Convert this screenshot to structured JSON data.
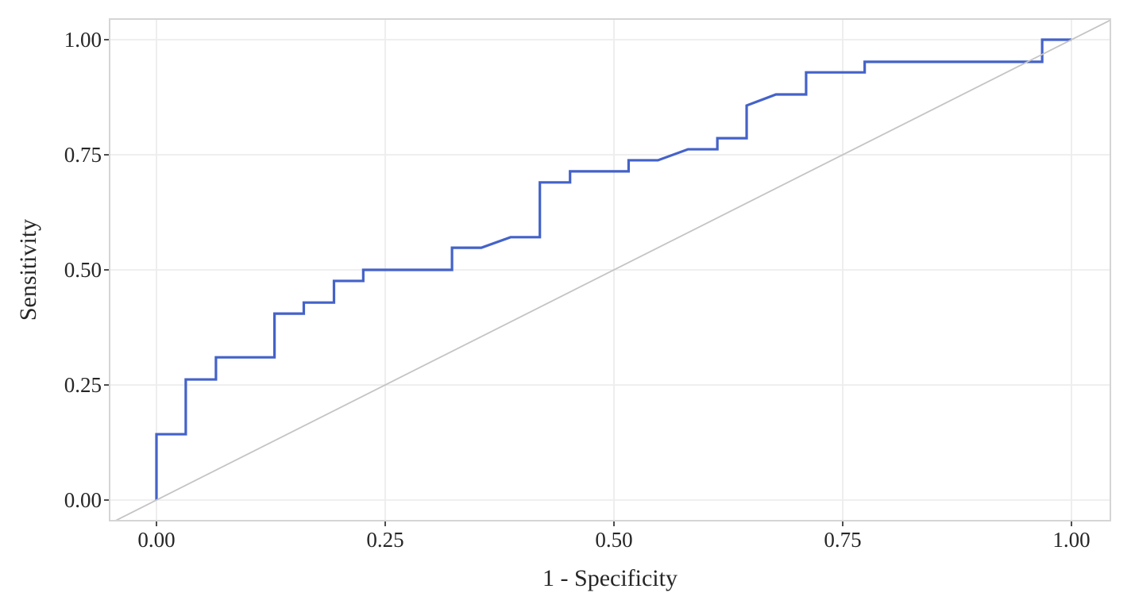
{
  "figure": {
    "background_color": "#ffffff",
    "text_color": "#262626"
  },
  "chart_data": {
    "type": "line",
    "subtype": "roc_step_curve",
    "title": "",
    "xlabel": "1 - Specificity",
    "ylabel": "Sensitivity",
    "xlim": [
      -0.051,
      1.043
    ],
    "ylim": [
      -0.045,
      1.041
    ],
    "x_tick_labels": [
      "0.00",
      "0.25",
      "0.50",
      "0.75",
      "1.00"
    ],
    "x_tick_values": [
      0,
      0.25,
      0.5,
      0.75,
      1
    ],
    "y_tick_labels": [
      "0.00",
      "0.25",
      "0.50",
      "0.75",
      "1.00"
    ],
    "y_tick_values": [
      0,
      0.25,
      0.5,
      0.75,
      1
    ],
    "grid": "major_only",
    "legend_position": "none",
    "colors": {
      "panel_background": "#ffffff",
      "panel_border": "#d5d5d5",
      "gridline": "#ededed",
      "tick_mark": "#4d4d4d",
      "axis_text": "#262626",
      "roc_curve": "#4462c8",
      "reference_line": "#c4c4c4"
    },
    "series": [
      {
        "name": "ROC curve",
        "draw": "step_polyline",
        "color": "#4462c8",
        "stroke_width": 3.2,
        "points": [
          [
            0.0,
            0.0
          ],
          [
            0.0,
            0.143
          ],
          [
            0.032,
            0.143
          ],
          [
            0.032,
            0.262
          ],
          [
            0.065,
            0.262
          ],
          [
            0.065,
            0.31
          ],
          [
            0.129,
            0.31
          ],
          [
            0.129,
            0.405
          ],
          [
            0.161,
            0.405
          ],
          [
            0.161,
            0.429
          ],
          [
            0.194,
            0.429
          ],
          [
            0.194,
            0.476
          ],
          [
            0.226,
            0.476
          ],
          [
            0.226,
            0.5
          ],
          [
            0.323,
            0.5
          ],
          [
            0.323,
            0.548
          ],
          [
            0.355,
            0.548
          ],
          [
            0.387,
            0.571
          ],
          [
            0.419,
            0.571
          ],
          [
            0.419,
            0.69
          ],
          [
            0.452,
            0.69
          ],
          [
            0.452,
            0.714
          ],
          [
            0.516,
            0.714
          ],
          [
            0.516,
            0.738
          ],
          [
            0.548,
            0.738
          ],
          [
            0.581,
            0.762
          ],
          [
            0.613,
            0.762
          ],
          [
            0.613,
            0.786
          ],
          [
            0.645,
            0.786
          ],
          [
            0.645,
            0.857
          ],
          [
            0.677,
            0.881
          ],
          [
            0.71,
            0.881
          ],
          [
            0.71,
            0.929
          ],
          [
            0.774,
            0.929
          ],
          [
            0.774,
            0.952
          ],
          [
            0.968,
            0.952
          ],
          [
            0.968,
            1.0
          ],
          [
            1.0,
            1.0
          ]
        ]
      },
      {
        "name": "chance reference line",
        "draw": "abline",
        "color": "#c4c4c4",
        "stroke_width": 1.8,
        "from": [
          0,
          0
        ],
        "to": [
          1,
          1
        ],
        "extends_to_panel_edges": true
      }
    ]
  }
}
